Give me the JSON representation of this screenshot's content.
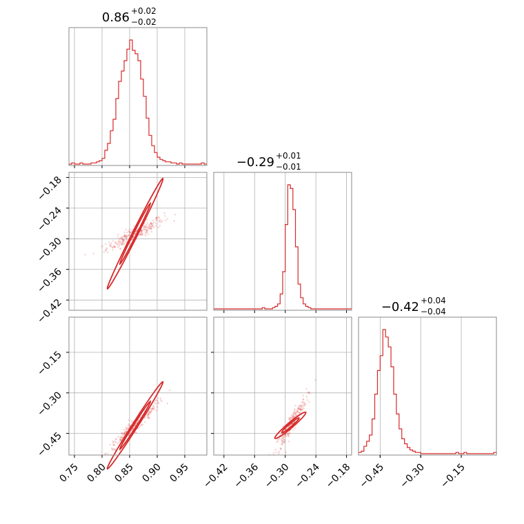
{
  "chart_data": {
    "type": "corner",
    "color": "#d62728",
    "params": [
      {
        "median": 0.86,
        "title": {
          "main": "0.86",
          "plus": "+0.02",
          "minus": "−0.02"
        },
        "range": [
          0.74,
          0.99
        ],
        "ticks": [
          0.75,
          0.8,
          0.85,
          0.9,
          0.95
        ],
        "tick_labels": [
          "0.75",
          "0.80",
          "0.85",
          "0.90",
          "0.95"
        ],
        "hist": {
          "bins": [
            0.74,
            0.745,
            0.75,
            0.755,
            0.76,
            0.765,
            0.77,
            0.775,
            0.78,
            0.785,
            0.79,
            0.795,
            0.8,
            0.805,
            0.81,
            0.815,
            0.82,
            0.825,
            0.83,
            0.835,
            0.84,
            0.845,
            0.85,
            0.855,
            0.86,
            0.865,
            0.87,
            0.875,
            0.88,
            0.885,
            0.89,
            0.895,
            0.9,
            0.905,
            0.91,
            0.915,
            0.92,
            0.925,
            0.93,
            0.935,
            0.94,
            0.945,
            0.95,
            0.955,
            0.96,
            0.965,
            0.97,
            0.975,
            0.98,
            0.985,
            0.99
          ],
          "counts": [
            0,
            1,
            0,
            0,
            1,
            0,
            0,
            0,
            1,
            1,
            2,
            3,
            5,
            12,
            18,
            29,
            39,
            57,
            72,
            81,
            90,
            100,
            108,
            99,
            96,
            90,
            74,
            59,
            40,
            25,
            16,
            10,
            6,
            4,
            3,
            2,
            2,
            1,
            1,
            0,
            1,
            0,
            0,
            0,
            0,
            0,
            0,
            0,
            1,
            0
          ]
        }
      },
      {
        "median": -0.29,
        "title": {
          "main": "−0.29",
          "plus": "+0.01",
          "minus": "−0.01"
        },
        "range": [
          -0.44,
          -0.17
        ],
        "ticks": [
          -0.42,
          -0.36,
          -0.3,
          -0.24,
          -0.18
        ],
        "tick_labels": [
          "−0.42",
          "−0.36",
          "−0.30",
          "−0.24",
          "−0.18"
        ],
        "hist": {
          "bins": [
            -0.44,
            -0.435,
            -0.43,
            -0.425,
            -0.42,
            -0.415,
            -0.41,
            -0.405,
            -0.4,
            -0.395,
            -0.39,
            -0.385,
            -0.38,
            -0.375,
            -0.37,
            -0.365,
            -0.36,
            -0.355,
            -0.35,
            -0.345,
            -0.34,
            -0.335,
            -0.33,
            -0.325,
            -0.32,
            -0.315,
            -0.31,
            -0.305,
            -0.3,
            -0.295,
            -0.29,
            -0.285,
            -0.28,
            -0.275,
            -0.27,
            -0.265,
            -0.26,
            -0.255,
            -0.25,
            -0.245,
            -0.24,
            -0.235,
            -0.23,
            -0.225,
            -0.22,
            -0.215,
            -0.21,
            -0.205,
            -0.2,
            -0.195,
            -0.19,
            -0.185,
            -0.18,
            -0.175,
            -0.17
          ],
          "counts": [
            0,
            0,
            0,
            0,
            0,
            0,
            0,
            0,
            0,
            0,
            0,
            0,
            0,
            0,
            0,
            0,
            0,
            0,
            0,
            1,
            0,
            0,
            0,
            1,
            2,
            4,
            12,
            30,
            68,
            100,
            97,
            80,
            50,
            20,
            9,
            4,
            2,
            1,
            0,
            0,
            0,
            0,
            0,
            0,
            0,
            0,
            0,
            0,
            0,
            0,
            0,
            0,
            0,
            0
          ]
        }
      },
      {
        "median": -0.42,
        "title": {
          "main": "−0.42",
          "plus": "+0.04",
          "minus": "−0.04"
        },
        "range": [
          -0.53,
          -0.02
        ],
        "ticks": [
          -0.45,
          -0.3,
          -0.15
        ],
        "tick_labels": [
          "−0.45",
          "−0.30",
          "−0.15"
        ],
        "hist": {
          "bins": [
            -0.53,
            -0.52,
            -0.51,
            -0.5,
            -0.49,
            -0.48,
            -0.47,
            -0.46,
            -0.45,
            -0.44,
            -0.43,
            -0.42,
            -0.41,
            -0.4,
            -0.39,
            -0.38,
            -0.37,
            -0.36,
            -0.35,
            -0.34,
            -0.33,
            -0.32,
            -0.31,
            -0.3,
            -0.29,
            -0.28,
            -0.27,
            -0.26,
            -0.25,
            -0.24,
            -0.23,
            -0.22,
            -0.21,
            -0.2,
            -0.19,
            -0.18,
            -0.17,
            -0.16,
            -0.15,
            -0.14,
            -0.13,
            -0.12,
            -0.11,
            -0.1,
            -0.09,
            -0.08,
            -0.07,
            -0.06,
            -0.05,
            -0.04,
            -0.03,
            -0.02
          ],
          "counts": [
            1,
            2,
            6,
            10,
            15,
            28,
            48,
            67,
            79,
            100,
            94,
            86,
            70,
            48,
            32,
            20,
            12,
            8,
            5,
            3,
            2,
            1,
            1,
            0,
            0,
            0,
            0,
            0,
            0,
            0,
            0,
            0,
            0,
            0,
            0,
            0,
            1,
            0,
            0,
            1,
            0,
            0,
            0,
            0,
            0,
            0,
            0,
            0,
            0,
            0,
            1
          ]
        }
      }
    ],
    "pairs": [
      {
        "x": 0,
        "y": 1,
        "slope": 2.15,
        "sx": 0.02,
        "sy": 0.012,
        "rho": 0.9
      },
      {
        "x": 0,
        "y": 2,
        "slope": 3.2,
        "sx": 0.02,
        "sy": 0.04,
        "rho": 0.97
      },
      {
        "x": 1,
        "y": 2,
        "slope": 1.6,
        "sx": 0.012,
        "sy": 0.04,
        "rho": 0.94
      }
    ],
    "grid": true,
    "legend": "none"
  }
}
